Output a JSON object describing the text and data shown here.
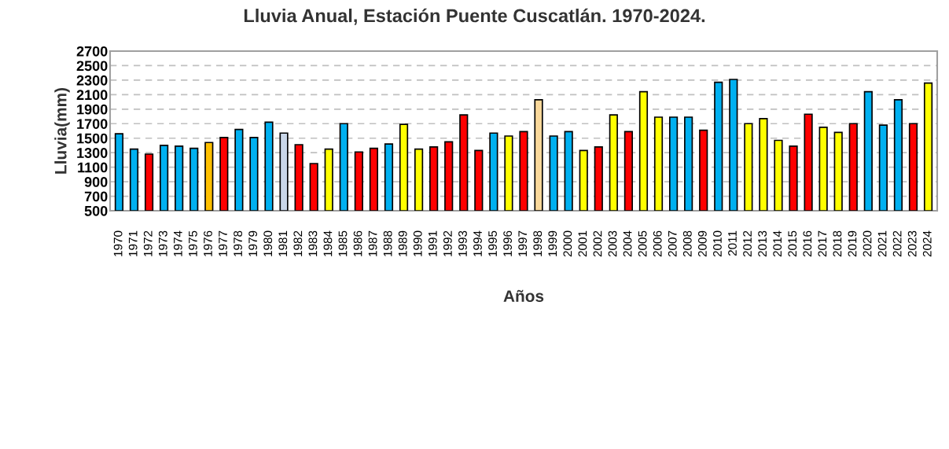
{
  "chart_data": {
    "type": "bar",
    "title": "Lluvia Anual, Estación Puente Cuscatlán. 1970-2024.",
    "xlabel": "Años",
    "ylabel": "Lluvia(mm)",
    "categories": [
      "1970",
      "1971",
      "1972",
      "1973",
      "1974",
      "1975",
      "1976",
      "1977",
      "1978",
      "1979",
      "1980",
      "1981",
      "1982",
      "1983",
      "1984",
      "1985",
      "1986",
      "1987",
      "1988",
      "1989",
      "1990",
      "1991",
      "1992",
      "1993",
      "1994",
      "1995",
      "1996",
      "1997",
      "1998",
      "1999",
      "2000",
      "2001",
      "2002",
      "2003",
      "2004",
      "2005",
      "2006",
      "2007",
      "2008",
      "2009",
      "2010",
      "2011",
      "2012",
      "2013",
      "2014",
      "2015",
      "2016",
      "2017",
      "2018",
      "2019",
      "2020",
      "2021",
      "2022",
      "2023",
      "2024"
    ],
    "values": [
      1560,
      1350,
      1280,
      1400,
      1390,
      1360,
      1440,
      1510,
      1620,
      1510,
      1720,
      1570,
      1410,
      1150,
      1350,
      1700,
      1310,
      1360,
      1420,
      1690,
      1350,
      1380,
      1450,
      1820,
      1330,
      1570,
      1530,
      1590,
      2030,
      1530,
      1590,
      1330,
      1380,
      1820,
      1590,
      2140,
      1790,
      1790,
      1790,
      1610,
      2270,
      2310,
      1700,
      1770,
      1470,
      1390,
      1830,
      1650,
      1580,
      1700,
      2140,
      1680,
      2030,
      1700,
      2260
    ],
    "colors": [
      "#00b0f0",
      "#00b0f0",
      "#ff0000",
      "#00b0f0",
      "#00b0f0",
      "#00b0f0",
      "#ffc000",
      "#ff0000",
      "#00b0f0",
      "#00b0f0",
      "#00b0f0",
      "#c9d6e8",
      "#ff0000",
      "#ff0000",
      "#ffff00",
      "#00b0f0",
      "#ff0000",
      "#ff0000",
      "#00b0f0",
      "#ffff00",
      "#ffff00",
      "#ff0000",
      "#ff0000",
      "#ff0000",
      "#ff0000",
      "#00b0f0",
      "#ffff00",
      "#ff0000",
      "#f9d89b",
      "#00b0f0",
      "#00b0f0",
      "#ffff00",
      "#ff0000",
      "#ffff00",
      "#ff0000",
      "#ffff00",
      "#ffff00",
      "#00b0f0",
      "#00b0f0",
      "#ff0000",
      "#00b0f0",
      "#00b0f0",
      "#ffff00",
      "#ffff00",
      "#ffff00",
      "#ff0000",
      "#ff0000",
      "#ffff00",
      "#ffff00",
      "#ff0000",
      "#00b0f0",
      "#00b0f0",
      "#00b0f0",
      "#ff0000",
      "#ffff00"
    ],
    "ylim": [
      500,
      2700
    ],
    "yticks": [
      500,
      700,
      900,
      1100,
      1300,
      1500,
      1700,
      1900,
      2100,
      2300,
      2500,
      2700
    ],
    "grid": "y"
  }
}
